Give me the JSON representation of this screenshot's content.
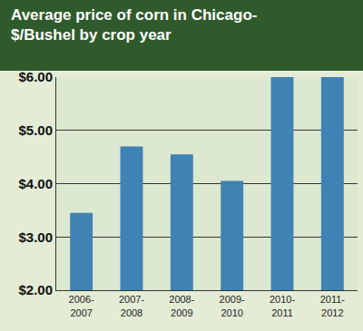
{
  "chart_data": {
    "type": "bar",
    "title": "Average price of corn in Chicago-\n$/Bushel by crop year",
    "categories": [
      "2006-2007",
      "2007-2008",
      "2008-2009",
      "2009-2010",
      "2010-2011",
      "2011-2012"
    ],
    "values": [
      3.45,
      4.7,
      4.55,
      4.05,
      6.0,
      6.0
    ],
    "color": "#3f82b4",
    "ylim": [
      2,
      6
    ],
    "yticks": [
      {
        "value": 2,
        "label": "$2.00"
      },
      {
        "value": 3,
        "label": "$3.00"
      },
      {
        "value": 4,
        "label": "$4.00"
      },
      {
        "value": 5,
        "label": "$5.00"
      },
      {
        "value": 6,
        "label": "$6.00"
      }
    ],
    "grid": true
  }
}
